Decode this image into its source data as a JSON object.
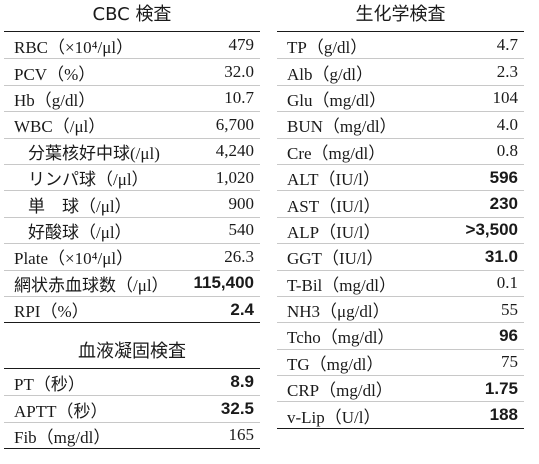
{
  "cbc": {
    "title": "CBC 検査",
    "rows": [
      {
        "label": "RBC（×10⁴/μl）",
        "value": "479",
        "bold": false,
        "indent": false
      },
      {
        "label": "PCV（%）",
        "value": "32.0",
        "bold": false,
        "indent": false
      },
      {
        "label": "Hb（g/dl）",
        "value": "10.7",
        "bold": false,
        "indent": false
      },
      {
        "label": "WBC（/μl）",
        "value": "6,700",
        "bold": false,
        "indent": false
      },
      {
        "label": "分葉核好中球(/μl)",
        "value": "4,240",
        "bold": false,
        "indent": true
      },
      {
        "label": "リンパ球（/μl）",
        "value": "1,020",
        "bold": false,
        "indent": true
      },
      {
        "label": "単　球（/μl）",
        "value": "900",
        "bold": false,
        "indent": true
      },
      {
        "label": "好酸球（/μl）",
        "value": "540",
        "bold": false,
        "indent": true
      },
      {
        "label": "Plate（×10⁴/μl）",
        "value": "26.3",
        "bold": false,
        "indent": false
      },
      {
        "label": "網状赤血球数（/μl）",
        "value": "115,400",
        "bold": true,
        "indent": false
      },
      {
        "label": "RPI（%）",
        "value": "2.4",
        "bold": true,
        "indent": false
      }
    ]
  },
  "coag": {
    "title": "血液凝固検査",
    "rows": [
      {
        "label": "PT（秒）",
        "value": "8.9",
        "bold": true,
        "indent": false
      },
      {
        "label": "APTT（秒）",
        "value": "32.5",
        "bold": true,
        "indent": false
      },
      {
        "label": "Fib（mg/dl）",
        "value": "165",
        "bold": false,
        "indent": false
      }
    ]
  },
  "chem": {
    "title": "生化学検査",
    "rows": [
      {
        "label": "TP（g/dl）",
        "value": "4.7",
        "bold": false,
        "indent": false
      },
      {
        "label": "Alb（g/dl）",
        "value": "2.3",
        "bold": false,
        "indent": false
      },
      {
        "label": "Glu（mg/dl）",
        "value": "104",
        "bold": false,
        "indent": false
      },
      {
        "label": "BUN（mg/dl）",
        "value": "4.0",
        "bold": false,
        "indent": false
      },
      {
        "label": "Cre（mg/dl）",
        "value": "0.8",
        "bold": false,
        "indent": false
      },
      {
        "label": "ALT（IU/l）",
        "value": "596",
        "bold": true,
        "indent": false
      },
      {
        "label": "AST（IU/l）",
        "value": "230",
        "bold": true,
        "indent": false
      },
      {
        "label": "ALP（IU/l）",
        "value": ">3,500",
        "bold": true,
        "indent": false
      },
      {
        "label": "GGT（IU/l）",
        "value": "31.0",
        "bold": true,
        "indent": false
      },
      {
        "label": "T-Bil（mg/dl）",
        "value": "0.1",
        "bold": false,
        "indent": false
      },
      {
        "label": "NH3（μg/dl）",
        "value": "55",
        "bold": false,
        "indent": false
      },
      {
        "label": "Tcho（mg/dl）",
        "value": "96",
        "bold": true,
        "indent": false
      },
      {
        "label": "TG（mg/dl）",
        "value": "75",
        "bold": false,
        "indent": false
      },
      {
        "label": "CRP（mg/dl）",
        "value": "1.75",
        "bold": true,
        "indent": false
      },
      {
        "label": "v-Lip（U/l）",
        "value": "188",
        "bold": true,
        "indent": false
      }
    ]
  }
}
